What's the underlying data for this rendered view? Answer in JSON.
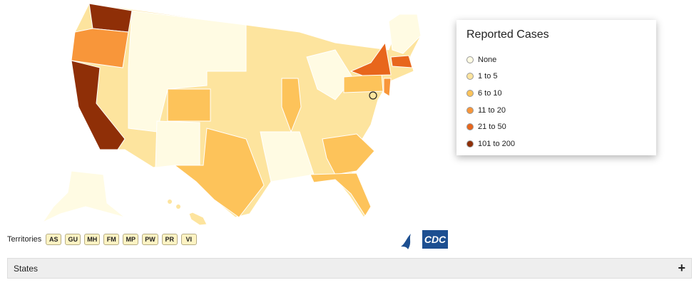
{
  "legend": {
    "title": "Reported Cases",
    "items": [
      {
        "label": "None",
        "color": "#fffbe3"
      },
      {
        "label": "1 to 5",
        "color": "#fde49e"
      },
      {
        "label": "6 to 10",
        "color": "#fdc35a"
      },
      {
        "label": "11 to 20",
        "color": "#f8963a"
      },
      {
        "label": "21 to 50",
        "color": "#e8661c"
      },
      {
        "label": "101 to 200",
        "color": "#8f2f07"
      }
    ]
  },
  "territories": {
    "label": "Territories",
    "items": [
      "AS",
      "GU",
      "MH",
      "FM",
      "MP",
      "PW",
      "PR",
      "VI"
    ]
  },
  "logo": {
    "text": "CDC"
  },
  "accordion": {
    "label": "States",
    "icon": "+"
  }
}
